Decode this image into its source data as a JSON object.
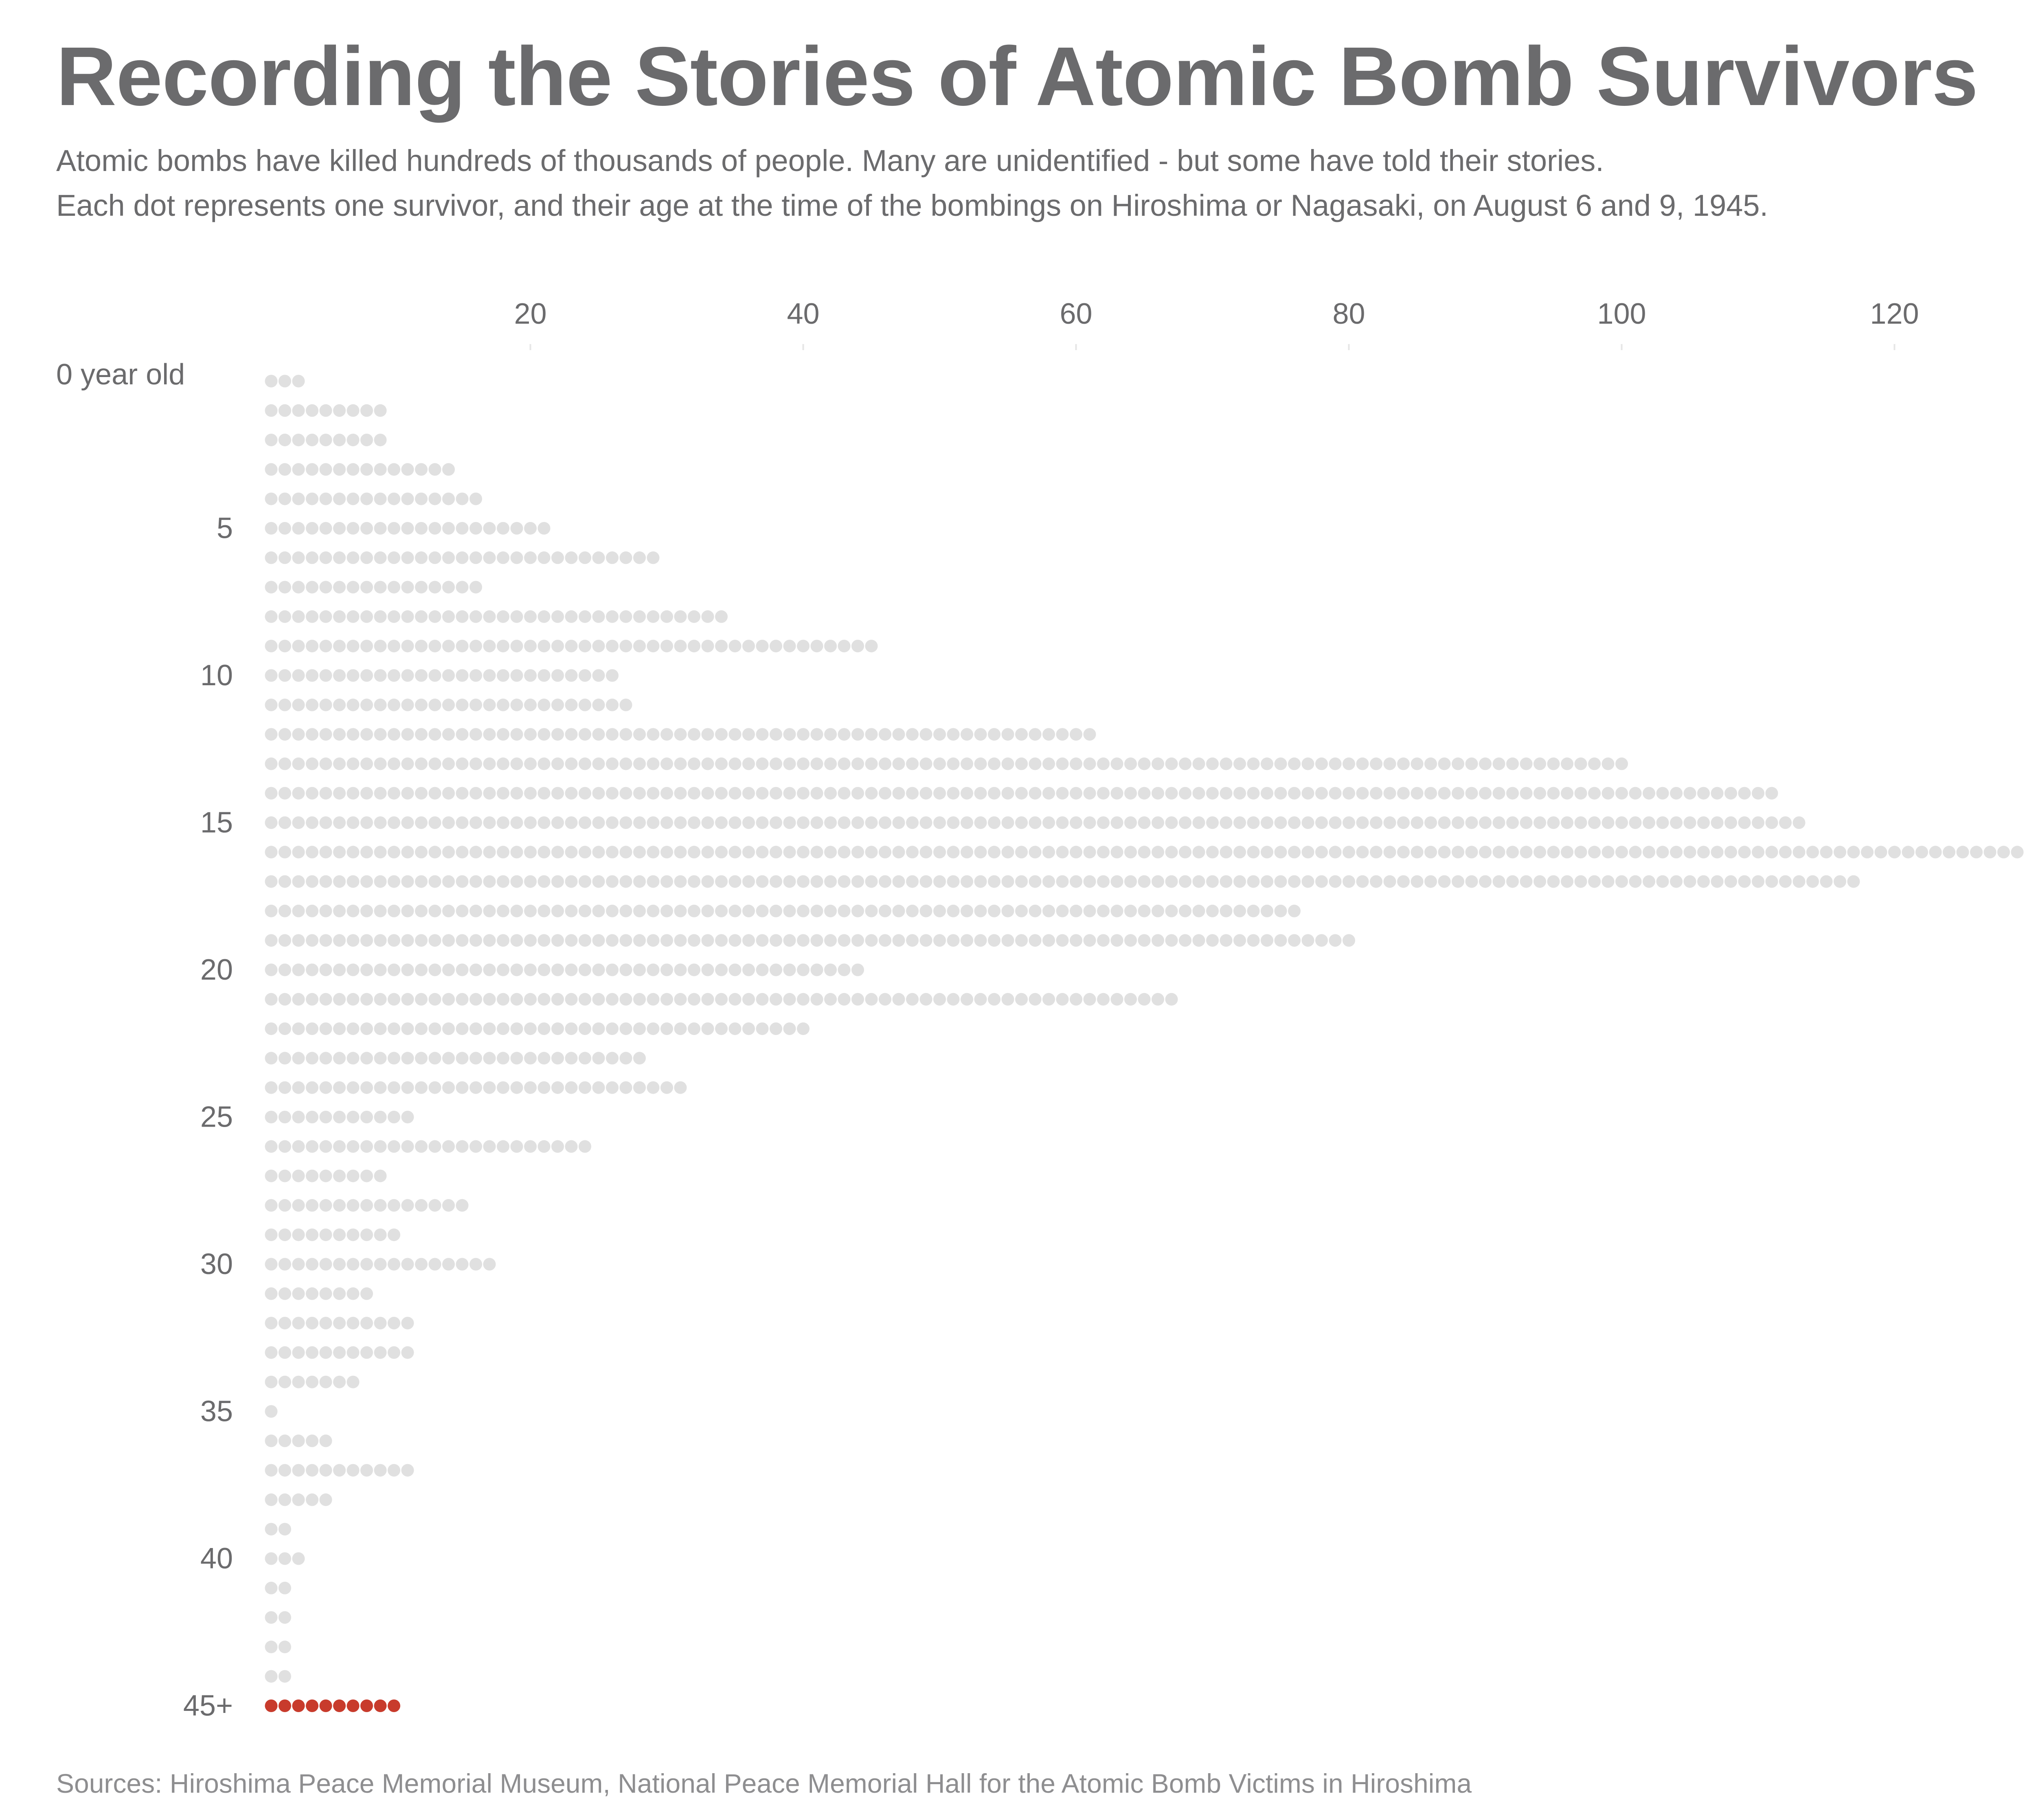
{
  "header": {
    "title": "Recording the Stories of Atomic Bomb Survivors",
    "subtitle_line1": "Atomic bombs have killed hundreds of thousands of people. Many are unidentified - but some have told their stories.",
    "subtitle_line2": "Each dot represents one survivor, and their age at the time of the bombings on Hiroshima or Nagasaki, on August 6 and 9, 1945."
  },
  "footer": {
    "source": "Sources: Hiroshima Peace Memorial Museum, National Peace Memorial Hall for the Atomic Bomb Victims in Hiroshima"
  },
  "chart_data": {
    "type": "bar",
    "style": "dot histogram, horizontal",
    "x_ticks": [
      "20",
      "40",
      "60",
      "80",
      "100",
      "120"
    ],
    "x_tick_values": [
      20,
      40,
      60,
      80,
      100,
      120
    ],
    "y_tick_labels": [
      "0 year old",
      "5",
      "10",
      "15",
      "20",
      "25",
      "30",
      "35",
      "40",
      "45+"
    ],
    "y_tick_ages": [
      0,
      5,
      10,
      15,
      20,
      25,
      30,
      35,
      40,
      45
    ],
    "categories": [
      "0",
      "1",
      "2",
      "3",
      "4",
      "5",
      "6",
      "7",
      "8",
      "9",
      "10",
      "11",
      "12",
      "13",
      "14",
      "15",
      "16",
      "17",
      "18",
      "19",
      "20",
      "21",
      "22",
      "23",
      "24",
      "25",
      "26",
      "27",
      "28",
      "29",
      "30",
      "31",
      "32",
      "33",
      "34",
      "35",
      "36",
      "37",
      "38",
      "39",
      "40",
      "41",
      "42",
      "43",
      "44",
      "45+"
    ],
    "values": [
      3,
      9,
      9,
      14,
      16,
      21,
      29,
      16,
      34,
      45,
      26,
      27,
      61,
      100,
      111,
      113,
      129,
      117,
      76,
      80,
      44,
      67,
      40,
      28,
      31,
      11,
      24,
      9,
      15,
      10,
      17,
      8,
      11,
      11,
      7,
      1,
      5,
      11,
      5,
      2,
      3,
      2,
      2,
      2,
      2,
      10
    ],
    "colors": {
      "default": "#e0e0e0",
      "highlight": "#c83b2c"
    },
    "highlight_category": "45+",
    "grid": false
  }
}
